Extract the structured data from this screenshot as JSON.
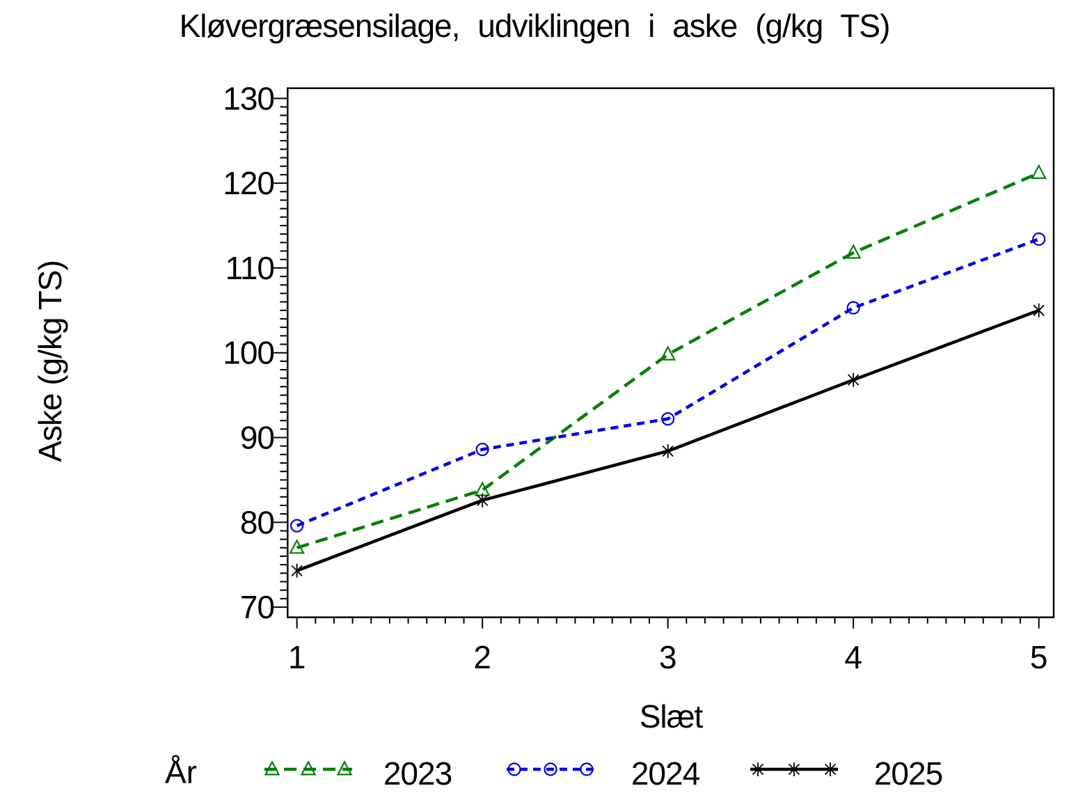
{
  "chart_data": {
    "type": "line",
    "title": "Kløvergræsensilage, udviklingen i aske (g/kg TS)",
    "xlabel": "Slæt",
    "ylabel": "Aske (g/kg TS)",
    "x": [
      1,
      2,
      3,
      4,
      5
    ],
    "xticks": [
      1,
      2,
      3,
      4,
      5
    ],
    "yticks": [
      70,
      80,
      90,
      100,
      110,
      120,
      130
    ],
    "xlim": [
      0.95,
      5.08
    ],
    "ylim": [
      68.8,
      131.2
    ],
    "minor_tick_step_x": 0.1,
    "minor_tick_step_y": 1,
    "grid": false,
    "frame": true,
    "legend_title": "År",
    "legend_position": "bottom",
    "series": [
      {
        "name": "2023",
        "color": "#008000",
        "marker": "triangle",
        "line": "dashed",
        "dash": "18 10",
        "values": [
          77.0,
          83.8,
          99.8,
          111.8,
          121.2
        ]
      },
      {
        "name": "2024",
        "color": "#0000e0",
        "marker": "circle",
        "line": "dashed",
        "dash": "11 8",
        "values": [
          79.6,
          88.6,
          92.2,
          105.3,
          113.4
        ]
      },
      {
        "name": "2025",
        "color": "#000000",
        "marker": "star",
        "line": "solid",
        "dash": "",
        "values": [
          74.3,
          82.6,
          88.4,
          96.8,
          105.0
        ]
      }
    ],
    "background_color": "#ffffff",
    "axis_color": "#000000"
  }
}
